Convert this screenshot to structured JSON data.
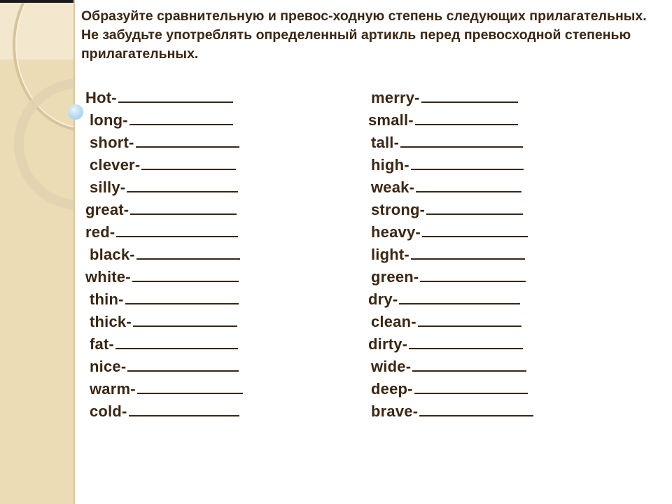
{
  "instruction": "Образуйте сравнительную и превос-ходную степень следующих прилагательных. Не забудьте употреблять определенный артикль перед превосходной степенью прилагательных.",
  "left_column": [
    "Hot-",
    "long-",
    "short-",
    "clever-",
    "silly-",
    "great-",
    "red-",
    "black-",
    "white-",
    "thin-",
    "thick-",
    "fat-",
    "nice-",
    "warm-",
    "cold-"
  ],
  "right_column": [
    "merry-",
    "small-",
    "tall-",
    "high-",
    "weak-",
    "strong-",
    "heavy-",
    "light-",
    "green-",
    "dry-",
    "clean-",
    "dirty-",
    "wide-",
    "deep-",
    "brave-"
  ],
  "colors": {
    "text": "#3a2714",
    "sidebar": "#ecdcb6"
  }
}
